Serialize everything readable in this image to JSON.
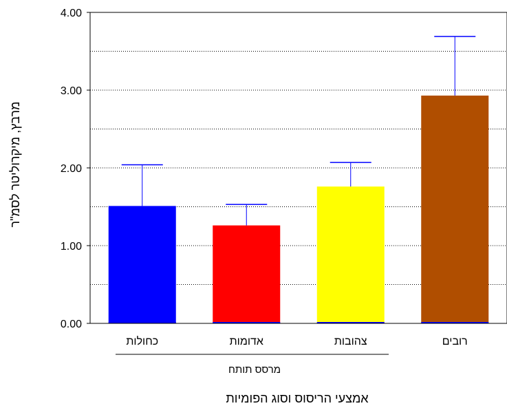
{
  "chart_data": {
    "type": "bar",
    "categories": [
      "כחולות",
      "אדומות",
      "צהובות",
      "רובים"
    ],
    "values": [
      1.51,
      1.26,
      1.76,
      2.93
    ],
    "error_upper": [
      2.04,
      1.53,
      2.07,
      3.69
    ],
    "colors": [
      "#0000ff",
      "#ff0000",
      "#ffff00",
      "#b04e00"
    ],
    "error_color": "#0000ff",
    "ylim": [
      0,
      4
    ],
    "yticks": [
      "0.00",
      "1.00",
      "2.00",
      "3.00",
      "4.00"
    ],
    "grid": "horizontal dotted, every 0.5",
    "ylabel": "מרבץ, מיקרוליטר לסמ\"ר",
    "xlabel": "אמצעי הריסוס וסוג הפומיות",
    "group_label": "מרסס תותח",
    "group_span": [
      "כחולות",
      "אדומות",
      "צהובות"
    ]
  }
}
